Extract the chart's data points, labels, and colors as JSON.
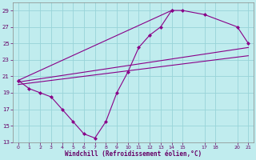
{
  "xlabel": "Windchill (Refroidissement éolien,°C)",
  "background_color": "#c0ecee",
  "grid_color": "#98d4d8",
  "line_color": "#880088",
  "xlim": [
    -0.5,
    21.5
  ],
  "ylim": [
    13,
    30
  ],
  "yticks": [
    13,
    15,
    17,
    19,
    21,
    23,
    25,
    27,
    29
  ],
  "xticks": [
    0,
    1,
    2,
    3,
    4,
    5,
    6,
    7,
    8,
    9,
    10,
    11,
    12,
    13,
    14,
    15,
    17,
    18,
    20,
    21
  ],
  "line1_x": [
    0,
    1,
    2,
    3,
    4,
    5,
    6,
    7,
    8,
    9,
    10,
    11,
    12,
    13,
    14
  ],
  "line1_y": [
    20.5,
    19.5,
    19.0,
    18.5,
    17.0,
    15.5,
    14.0,
    13.5,
    15.5,
    19.0,
    21.5,
    24.5,
    26.0,
    27.0,
    29.0
  ],
  "line2_x": [
    0,
    14,
    15,
    17,
    20,
    21
  ],
  "line2_y": [
    20.5,
    29.0,
    29.0,
    28.5,
    27.0,
    25.0
  ],
  "line3_x": [
    0,
    21
  ],
  "line3_y": [
    20.3,
    24.5
  ],
  "line4_x": [
    0,
    21
  ],
  "line4_y": [
    20.0,
    23.5
  ],
  "marker_size": 2.5,
  "linewidth": 0.8
}
